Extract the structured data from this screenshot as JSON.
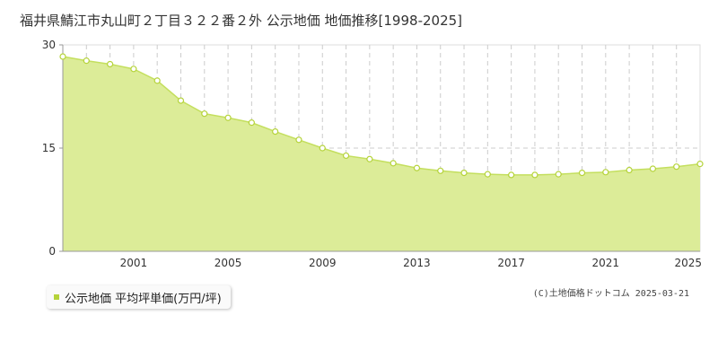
{
  "title": "福井県鯖江市丸山町２丁目３２２番２外 公示地価 地価推移[1998-2025]",
  "legend": {
    "label": "公示地価 平均坪単価(万円/坪)"
  },
  "copyright": "(C)土地価格ドットコム 2025-03-21",
  "colors": {
    "fill": "#dcec98",
    "line": "#c4df5e",
    "point_fill": "#ffffff",
    "point_stroke": "#b5d33a",
    "grid": "#cccccc",
    "axis": "#999999"
  },
  "chart_data": {
    "type": "area",
    "title": "福井県鯖江市丸山町２丁目３２２番２外 公示地価 地価推移[1998-2025]",
    "xlabel": "",
    "ylabel": "",
    "xlim": [
      1998,
      2025
    ],
    "ylim": [
      0,
      30
    ],
    "y_ticks": [
      0,
      15,
      30
    ],
    "x_tick_labels": [
      "2001",
      "2005",
      "2009",
      "2013",
      "2017",
      "2021",
      "2025"
    ],
    "grid": true,
    "series": [
      {
        "name": "公示地価 平均坪単価(万円/坪)",
        "x": [
          1998,
          1999,
          2000,
          2001,
          2002,
          2003,
          2004,
          2005,
          2006,
          2007,
          2008,
          2009,
          2010,
          2011,
          2012,
          2013,
          2014,
          2015,
          2016,
          2017,
          2018,
          2019,
          2020,
          2021,
          2022,
          2023,
          2024,
          2025
        ],
        "values": [
          28.3,
          27.7,
          27.2,
          26.5,
          24.8,
          21.9,
          20.0,
          19.4,
          18.7,
          17.4,
          16.2,
          15.0,
          13.9,
          13.4,
          12.8,
          12.1,
          11.7,
          11.4,
          11.2,
          11.1,
          11.1,
          11.2,
          11.4,
          11.5,
          11.8,
          12.0,
          12.3,
          12.7
        ]
      }
    ]
  }
}
